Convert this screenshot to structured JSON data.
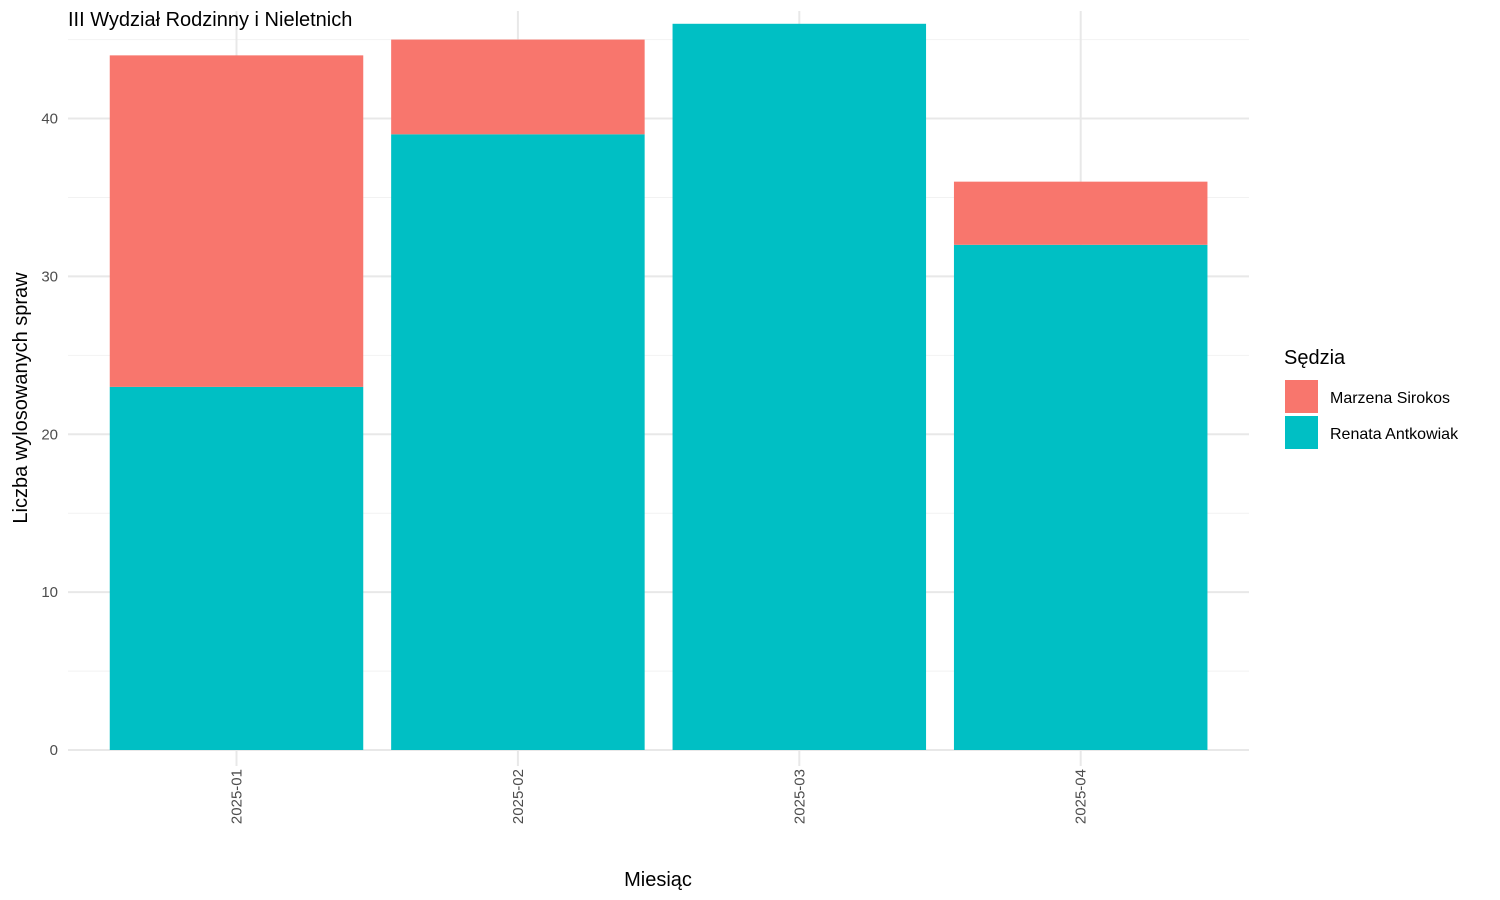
{
  "chart_data": {
    "type": "bar",
    "stacked": true,
    "title": "III Wydział Rodzinny i Nieletnich",
    "xlabel": "Miesiąc",
    "ylabel": "Liczba wylosowanych spraw",
    "categories": [
      "2025-01",
      "2025-02",
      "2025-03",
      "2025-04"
    ],
    "x_tick_rotation": "vertical",
    "ylim": [
      0,
      47
    ],
    "yticks": [
      0,
      10,
      20,
      30,
      40
    ],
    "grid": true,
    "legend": {
      "title": "Sędzia",
      "position": "right"
    },
    "series": [
      {
        "name": "Renata Antkowiak",
        "color": "#00BFC4",
        "values": [
          23,
          39,
          46,
          32
        ]
      },
      {
        "name": "Marzena Sirokos",
        "color": "#F8766D",
        "values": [
          21,
          6,
          0,
          4
        ]
      }
    ],
    "legend_order": [
      "Marzena Sirokos",
      "Renata Antkowiak"
    ]
  }
}
